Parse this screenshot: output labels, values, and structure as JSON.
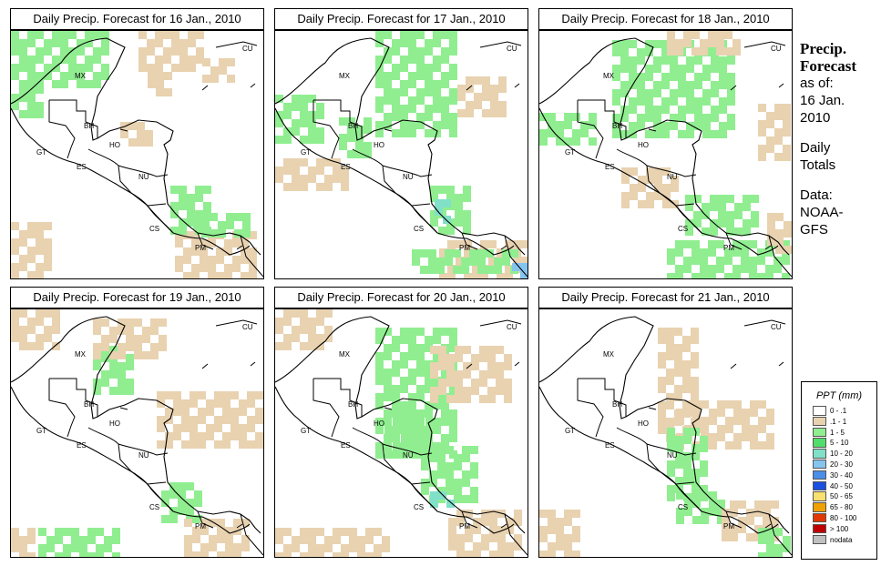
{
  "panels": [
    {
      "title": "Daily Precip. Forecast for  16 Jan., 2010",
      "day": "16 Jan., 2010"
    },
    {
      "title": "Daily Precip. Forecast for  17 Jan., 2010",
      "day": "17 Jan., 2010"
    },
    {
      "title": "Daily Precip. Forecast for  18 Jan., 2010",
      "day": "18 Jan., 2010"
    },
    {
      "title": "Daily Precip. Forecast for  19 Jan., 2010",
      "day": "19 Jan., 2010"
    },
    {
      "title": "Daily Precip. Forecast for  20 Jan., 2010",
      "day": "20 Jan., 2010"
    },
    {
      "title": "Daily Precip. Forecast for  21 Jan., 2010",
      "day": "21 Jan., 2010"
    }
  ],
  "country_labels": {
    "mx": "MX",
    "bh": "BH",
    "gt": "GT",
    "ho": "HO",
    "es": "ES",
    "nu": "NU",
    "cs": "CS",
    "pm": "PM",
    "cu": "CU"
  },
  "sidebar": {
    "title_line1": "Precip.",
    "title_line2": "Forecast",
    "asof": "as of:",
    "date_line1": "16 Jan.",
    "date_line2": "2010",
    "daily_line1": "Daily",
    "daily_line2": "Totals",
    "data_line1": "Data:",
    "data_line2": "NOAA-",
    "data_line3": "GFS"
  },
  "legend": {
    "title": "PPT (mm)",
    "items": [
      {
        "label": "0 - .1",
        "color": "#ffffff"
      },
      {
        "label": ".1 - 1",
        "color": "#e8d2b0"
      },
      {
        "label": "1 - 5",
        "color": "#90ee90"
      },
      {
        "label": "5 - 10",
        "color": "#52de6c"
      },
      {
        "label": "10 - 20",
        "color": "#80e0c8"
      },
      {
        "label": "20 - 30",
        "color": "#86c4f0"
      },
      {
        "label": "30 - 40",
        "color": "#4a8ee8"
      },
      {
        "label": "40 - 50",
        "color": "#1a4fe0"
      },
      {
        "label": "50 - 65",
        "color": "#f8e070"
      },
      {
        "label": "65 - 80",
        "color": "#f0a000"
      },
      {
        "label": "80 - 100",
        "color": "#e03800"
      },
      {
        "label": "> 100",
        "color": "#c00000"
      },
      {
        "label": "nodata",
        "color": "#c0c0c0"
      }
    ]
  },
  "colors": {
    "tan": "#e8d2b0",
    "green": "#90ee90",
    "cyan": "#80e0c8",
    "blue": "#86c4f0"
  }
}
